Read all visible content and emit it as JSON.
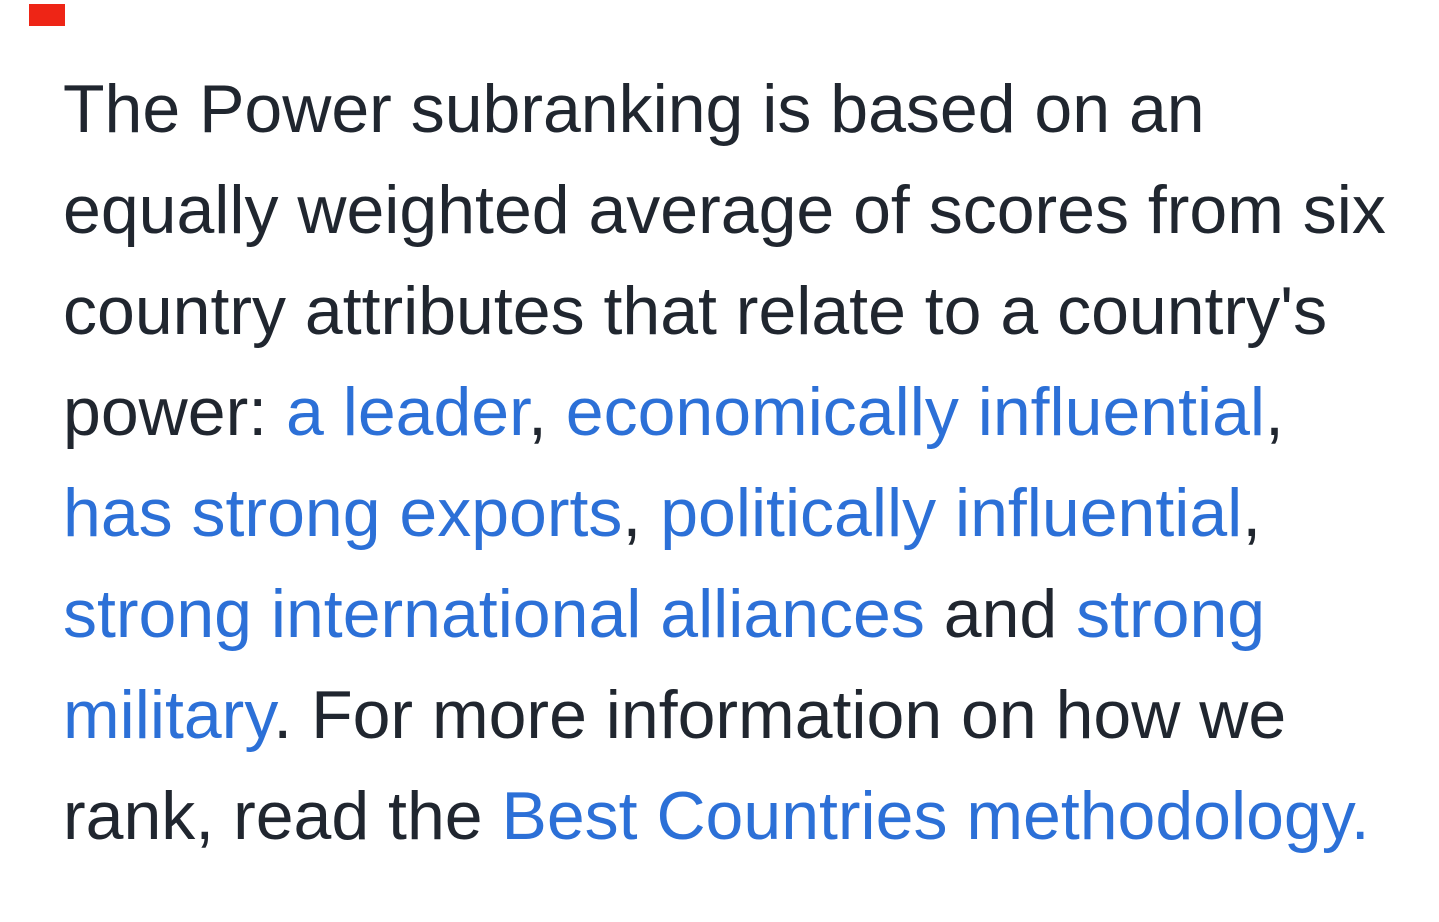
{
  "page": {
    "background_color": "#ffffff"
  },
  "marker": {
    "color": "#ee2516"
  },
  "paragraph": {
    "text_color": "#20262f",
    "link_color": "#2c70d7",
    "full_text": "The Power subranking is based on an equally weighted average of scores from six country attributes that relate to a country's power: a leader, economically influential, has strong exports, politically influential, strong international alliances and strong military. For more information on how we rank, read the Best Countries methodology.",
    "links": [
      "a leader",
      "economically influential",
      "has strong exports",
      "politically influential",
      "strong international alliances",
      "strong military",
      "Best Countries methodology."
    ],
    "lines": [
      {
        "segments": [
          {
            "text": "The Power subranking is based on an",
            "type": "text"
          }
        ]
      },
      {
        "segments": [
          {
            "text": "equally weighted average of scores from six",
            "type": "text"
          }
        ]
      },
      {
        "segments": [
          {
            "text": "country attributes that relate to a country's",
            "type": "text"
          }
        ]
      },
      {
        "segments": [
          {
            "text": "power: ",
            "type": "text"
          },
          {
            "text": "a leader",
            "type": "link",
            "link_name": "a-leader"
          },
          {
            "text": ", ",
            "type": "text"
          },
          {
            "text": "economically influential",
            "type": "link",
            "link_name": "economically-influential"
          },
          {
            "text": ",",
            "type": "text"
          }
        ]
      },
      {
        "segments": [
          {
            "text": "has strong exports",
            "type": "link",
            "link_name": "has-strong-exports"
          },
          {
            "text": ", ",
            "type": "text"
          },
          {
            "text": "politically influential",
            "type": "link",
            "link_name": "politically-influential"
          },
          {
            "text": ",",
            "type": "text"
          }
        ]
      },
      {
        "segments": [
          {
            "text": "strong international alliances",
            "type": "link",
            "link_name": "strong-international-alliances"
          },
          {
            "text": " and ",
            "type": "text"
          },
          {
            "text": "strong",
            "type": "link",
            "link_name": "strong-military"
          },
          {
            "text": " ",
            "type": "text"
          }
        ]
      },
      {
        "segments": [
          {
            "text": "military",
            "type": "link",
            "link_name": "strong-military"
          },
          {
            "text": ". For more information on how we",
            "type": "text"
          }
        ]
      },
      {
        "segments": [
          {
            "text": "rank, read the ",
            "type": "text"
          },
          {
            "text": "Best Countries methodology.",
            "type": "link",
            "link_name": "best-countries-methodology"
          }
        ]
      }
    ]
  }
}
